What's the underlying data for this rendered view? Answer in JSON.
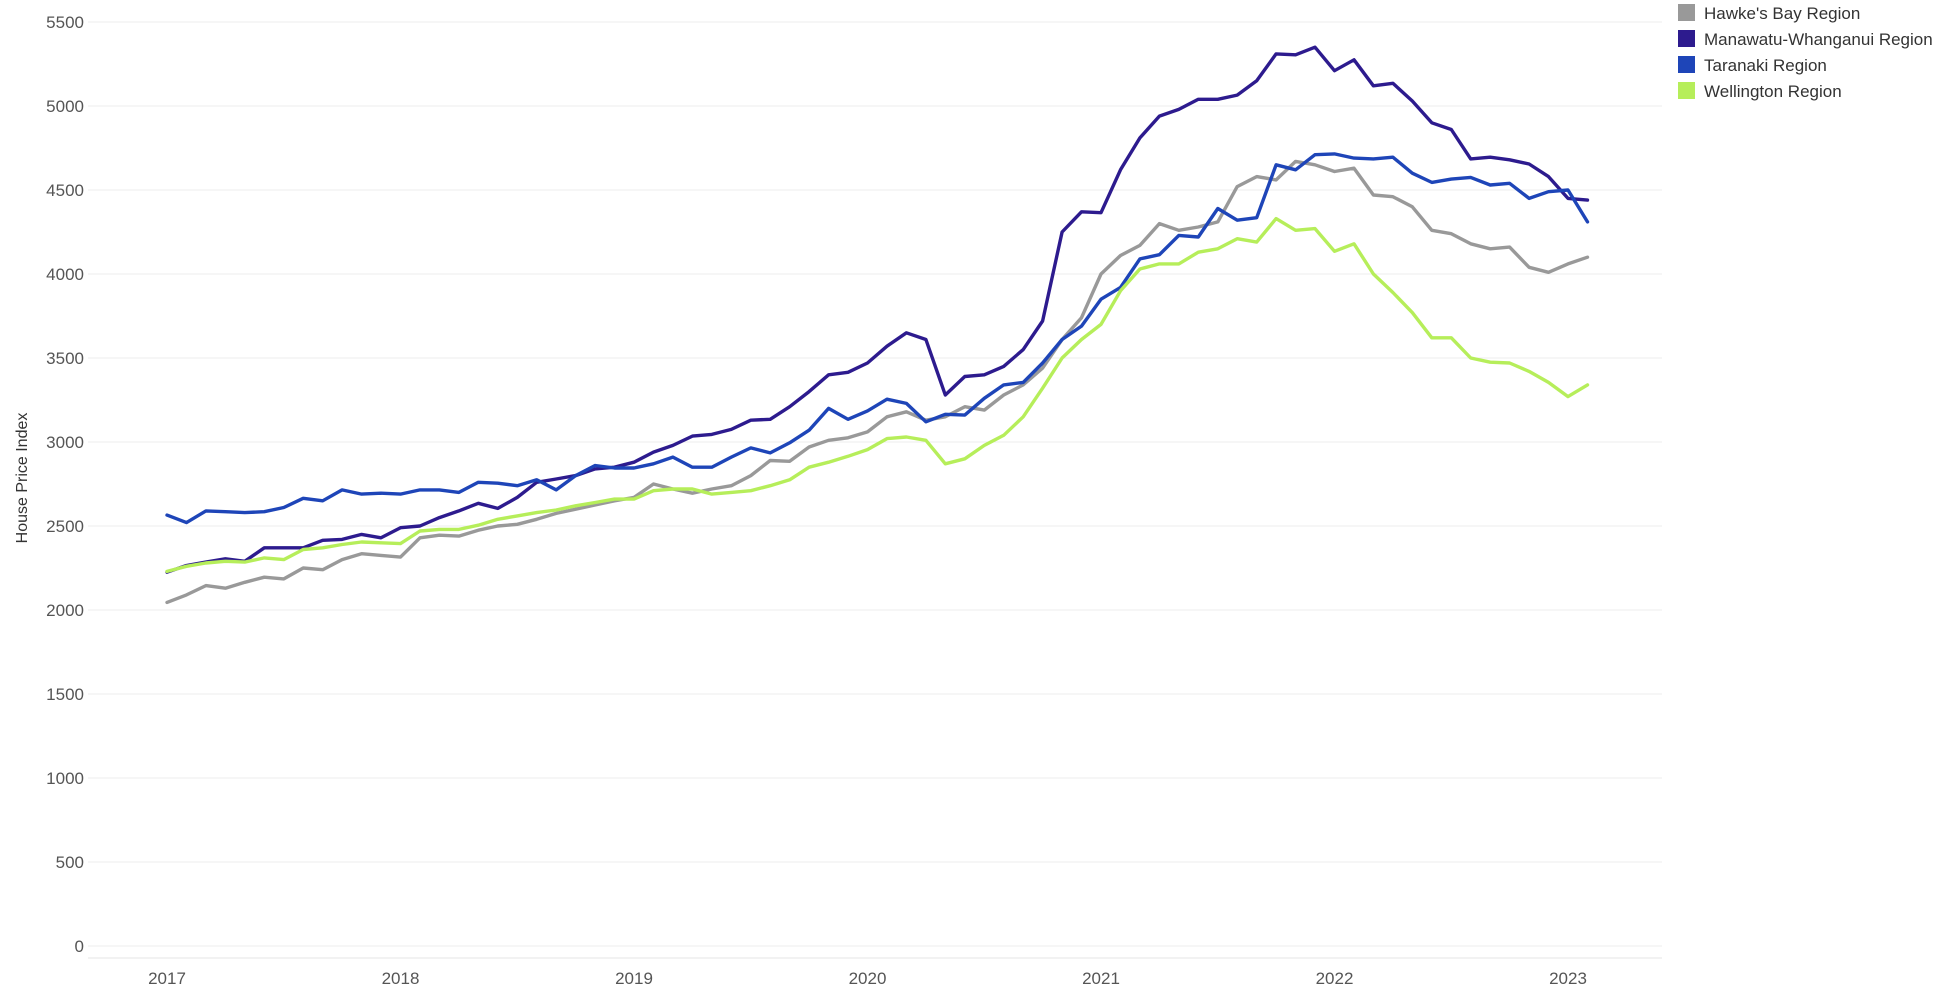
{
  "chart_data": {
    "type": "line",
    "title": "",
    "xlabel": "",
    "ylabel": "House Price Index",
    "ylim": [
      0,
      5500
    ],
    "y_ticks": [
      "0",
      "500",
      "1000",
      "1500",
      "2000",
      "2500",
      "3000",
      "3500",
      "4000",
      "4500",
      "5000",
      "5500"
    ],
    "x_ticks": [
      "2017",
      "2018",
      "2019",
      "2020",
      "2021",
      "2022",
      "2023"
    ],
    "grid": "horizontal",
    "legend_position": "top-right",
    "x_start": "2017-01",
    "x_frequency": "monthly",
    "series": [
      {
        "name": "Hawke's Bay Region",
        "color": "#999999",
        "values": [
          2045,
          2090,
          2145,
          2130,
          2165,
          2195,
          2185,
          2250,
          2240,
          2300,
          2335,
          2325,
          2315,
          2430,
          2445,
          2440,
          2475,
          2500,
          2510,
          2540,
          2575,
          2600,
          2625,
          2650,
          2670,
          2750,
          2720,
          2695,
          2720,
          2740,
          2800,
          2890,
          2885,
          2970,
          3010,
          3025,
          3060,
          3150,
          3180,
          3130,
          3150,
          3210,
          3190,
          3280,
          3340,
          3440,
          3610,
          3740,
          4000,
          4110,
          4170,
          4300,
          4260,
          4280,
          4310,
          4520,
          4580,
          4560,
          4670,
          4650,
          4610,
          4630,
          4470,
          4460,
          4400,
          4260,
          4240,
          4180,
          4150,
          4160,
          4040,
          4010,
          4060,
          4100
        ]
      },
      {
        "name": "Manawatu-Whanganui Region",
        "color": "#2d1b8e",
        "values": [
          2225,
          2265,
          2285,
          2305,
          2290,
          2370,
          2370,
          2370,
          2415,
          2420,
          2450,
          2430,
          2490,
          2500,
          2550,
          2590,
          2635,
          2605,
          2670,
          2760,
          2780,
          2800,
          2840,
          2850,
          2880,
          2940,
          2980,
          3035,
          3045,
          3075,
          3130,
          3135,
          3210,
          3300,
          3400,
          3415,
          3470,
          3570,
          3650,
          3610,
          3280,
          3390,
          3400,
          3450,
          3550,
          3720,
          4250,
          4370,
          4365,
          4620,
          4810,
          4940,
          4980,
          5040,
          5040,
          5065,
          5150,
          5310,
          5305,
          5350,
          5210,
          5275,
          5120,
          5135,
          5030,
          4900,
          4860,
          4685,
          4695,
          4680,
          4655,
          4580,
          4450,
          4440
        ]
      },
      {
        "name": "Taranaki Region",
        "color": "#1e45b8",
        "values": [
          2565,
          2520,
          2590,
          2585,
          2580,
          2585,
          2610,
          2665,
          2650,
          2715,
          2690,
          2695,
          2690,
          2715,
          2715,
          2700,
          2760,
          2755,
          2740,
          2775,
          2715,
          2800,
          2860,
          2845,
          2845,
          2870,
          2910,
          2850,
          2850,
          2910,
          2965,
          2935,
          2995,
          3070,
          3200,
          3135,
          3185,
          3255,
          3230,
          3120,
          3165,
          3160,
          3260,
          3340,
          3355,
          3470,
          3610,
          3690,
          3850,
          3920,
          4090,
          4115,
          4230,
          4220,
          4390,
          4320,
          4335,
          4650,
          4620,
          4710,
          4715,
          4690,
          4685,
          4695,
          4600,
          4545,
          4565,
          4575,
          4530,
          4540,
          4450,
          4490,
          4500,
          4310
        ]
      },
      {
        "name": "Wellington Region",
        "color": "#b6ee5a",
        "values": [
          2230,
          2260,
          2280,
          2290,
          2285,
          2310,
          2300,
          2360,
          2370,
          2390,
          2405,
          2400,
          2395,
          2470,
          2480,
          2480,
          2505,
          2540,
          2560,
          2580,
          2595,
          2620,
          2640,
          2660,
          2660,
          2710,
          2720,
          2720,
          2690,
          2700,
          2710,
          2740,
          2775,
          2850,
          2880,
          2915,
          2955,
          3020,
          3030,
          3010,
          2870,
          2900,
          2980,
          3040,
          3150,
          3320,
          3500,
          3610,
          3700,
          3900,
          4030,
          4060,
          4060,
          4130,
          4150,
          4210,
          4190,
          4330,
          4260,
          4270,
          4135,
          4180,
          4000,
          3890,
          3770,
          3620,
          3620,
          3500,
          3475,
          3470,
          3420,
          3355,
          3270,
          3340
        ]
      }
    ]
  }
}
